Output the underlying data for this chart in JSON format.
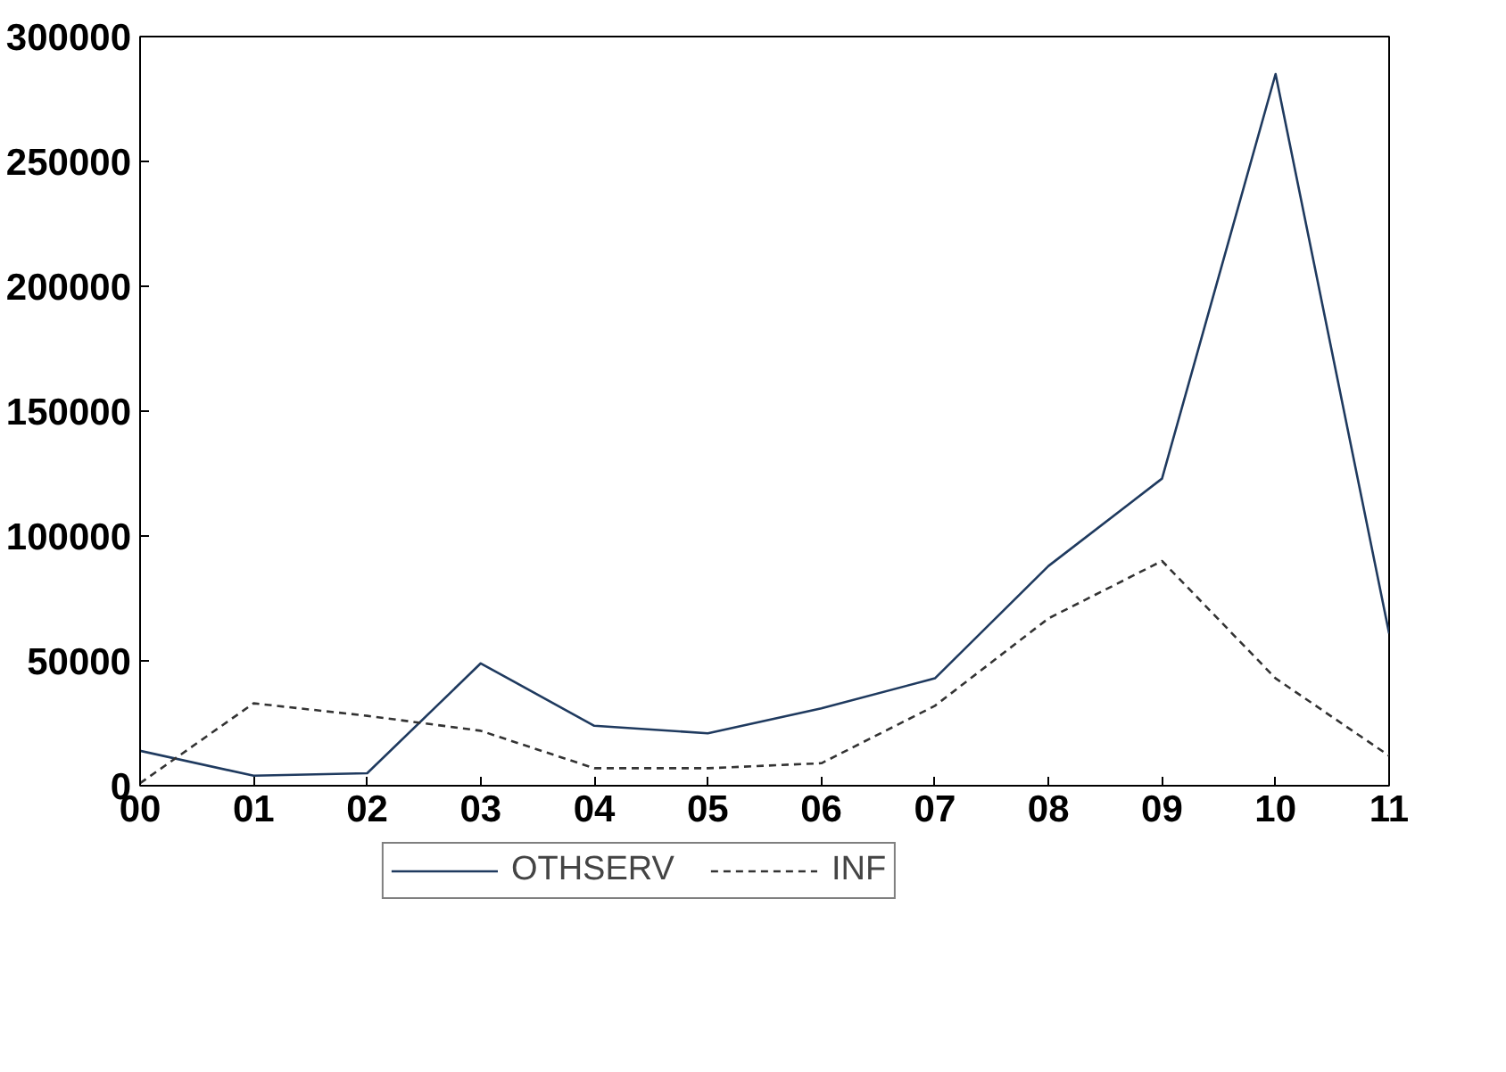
{
  "chart_data": {
    "type": "line",
    "categories": [
      "00",
      "01",
      "02",
      "03",
      "04",
      "05",
      "06",
      "07",
      "08",
      "09",
      "10",
      "11"
    ],
    "series": [
      {
        "name": "OTHSERV",
        "color": "#1f3a5f",
        "line_style": "solid",
        "values": [
          14000,
          4000,
          5000,
          49000,
          24000,
          21000,
          31000,
          43000,
          88000,
          123000,
          285000,
          61000
        ]
      },
      {
        "name": "INF",
        "color": "#333333",
        "line_style": "dashed",
        "values": [
          1000,
          33000,
          28000,
          22000,
          7000,
          7000,
          9000,
          32000,
          67000,
          90000,
          43000,
          12000
        ]
      }
    ],
    "ylim": [
      0,
      300000
    ],
    "yticks": [
      0,
      50000,
      100000,
      150000,
      200000,
      250000,
      300000
    ],
    "grid": false,
    "legend": "bottom",
    "marker": "none"
  }
}
